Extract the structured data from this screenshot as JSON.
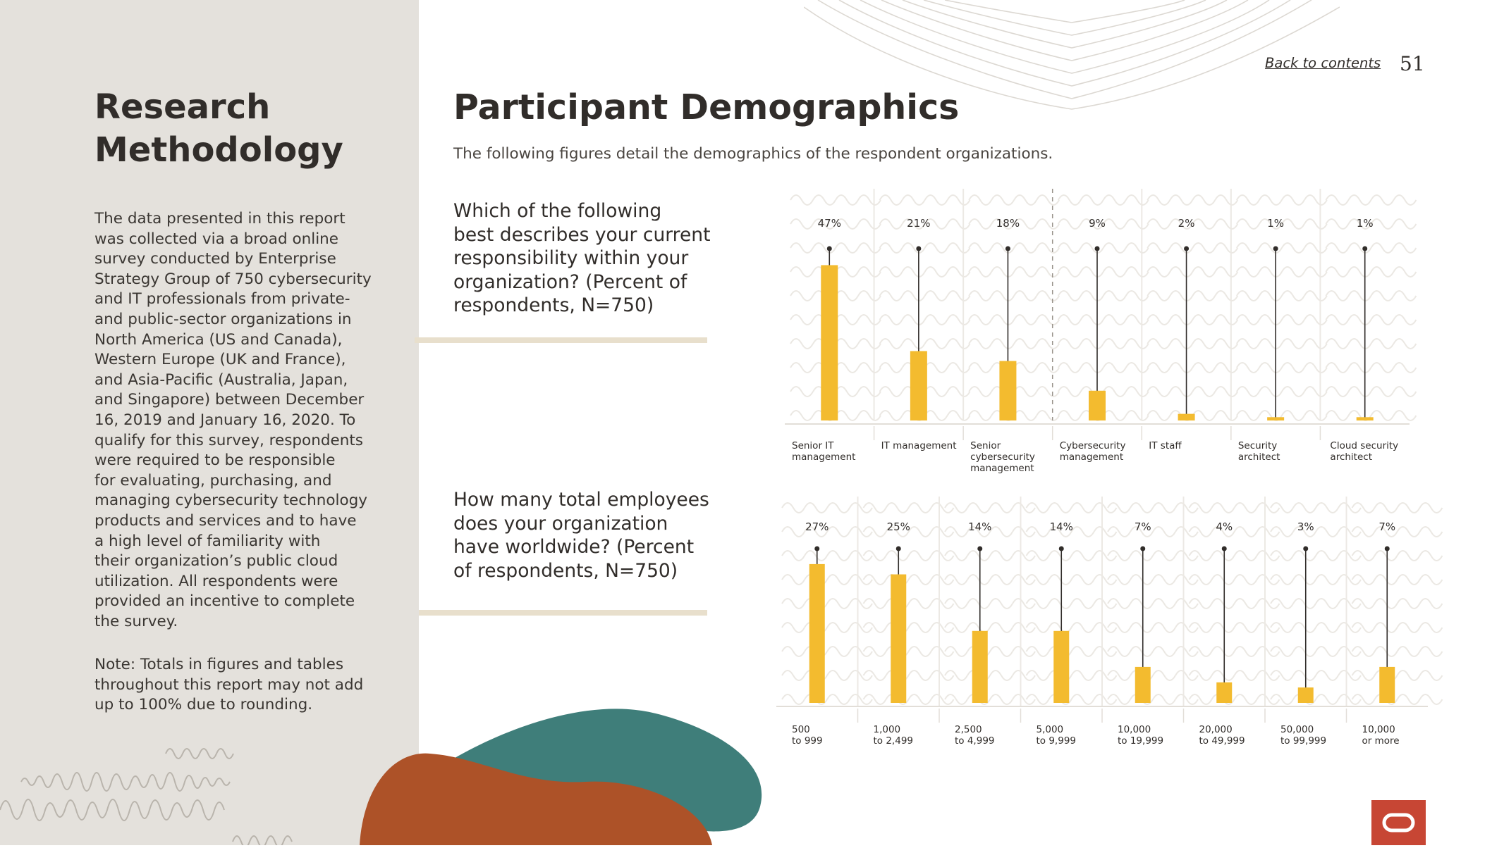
{
  "sidebar": {
    "title_line1": "Research",
    "title_line2": "Methodology",
    "body_lines": [
      "The data presented in this report",
      "was collected via a broad online",
      "survey conducted by Enterprise",
      "Strategy Group of 750 cybersecurity",
      "and IT professionals from private-",
      "and public-sector organizations in",
      "North America (US and Canada),",
      "Western Europe (UK and France),",
      "and Asia-Pacific (Australia, Japan,",
      "and Singapore) between December",
      "16, 2019 and January 16, 2020. To",
      "qualify for this survey, respondents",
      "were required to be responsible",
      "for evaluating, purchasing, and",
      "managing cybersecurity technology",
      "products and services and to have",
      "a high level of familiarity with",
      "their organization’s public cloud",
      "utilization. All respondents were",
      "provided an incentive to complete",
      "the survey."
    ],
    "note_lines": [
      "Note: Totals in figures and tables",
      "throughout this report may not add",
      "up to 100% due to rounding."
    ]
  },
  "header": {
    "back_link": "Back to contents",
    "page_number": "51"
  },
  "main": {
    "title": "Participant Demographics",
    "subtitle": "The following figures detail the demographics of the respondent organizations.",
    "question1_lines": [
      "Which of the following",
      "best describes your current",
      "responsibility within your",
      "organization? (Percent of",
      "respondents, N=750)"
    ],
    "question2_lines": [
      "How many total employees",
      "does your organization",
      "have worldwide? (Percent",
      "of respondents, N=750)"
    ]
  },
  "colors": {
    "bar": "#f3bb2f",
    "sidebar_bg": "#e4e1dc",
    "teal": "#3f7e7a",
    "rust": "#ad5228",
    "oracle_red": "#c74634"
  },
  "chart_data": [
    {
      "type": "bar",
      "title": "Which of the following best describes your current responsibility within your organization? (Percent of respondents, N=750)",
      "categories": [
        [
          "Senior IT",
          "management"
        ],
        [
          "IT management"
        ],
        [
          "Senior",
          "cybersecurity",
          "management"
        ],
        [
          "Cybersecurity",
          "management"
        ],
        [
          "IT staff"
        ],
        [
          "Security",
          "architect"
        ],
        [
          "Cloud security",
          "architect"
        ]
      ],
      "values": [
        47,
        21,
        18,
        9,
        2,
        1,
        1
      ],
      "labels": [
        "47%",
        "21%",
        "18%",
        "9%",
        "2%",
        "1%",
        "1%"
      ],
      "ylim": [
        0,
        52
      ],
      "unit": "%"
    },
    {
      "type": "bar",
      "title": "How many total employees does your organization have worldwide? (Percent of respondents, N=750)",
      "categories": [
        [
          "500",
          "to 999"
        ],
        [
          "1,000",
          "to 2,499"
        ],
        [
          "2,500",
          "to 4,999"
        ],
        [
          "5,000",
          "to 9,999"
        ],
        [
          "10,000",
          "to 19,999"
        ],
        [
          "20,000",
          "to 49,999"
        ],
        [
          "50,000",
          "to 99,999"
        ],
        [
          "10,000",
          "or more"
        ]
      ],
      "values": [
        27,
        25,
        14,
        14,
        7,
        4,
        3,
        7
      ],
      "labels": [
        "27%",
        "25%",
        "14%",
        "14%",
        "7%",
        "4%",
        "3%",
        "7%"
      ],
      "ylim": [
        0,
        30
      ],
      "unit": "%"
    }
  ]
}
